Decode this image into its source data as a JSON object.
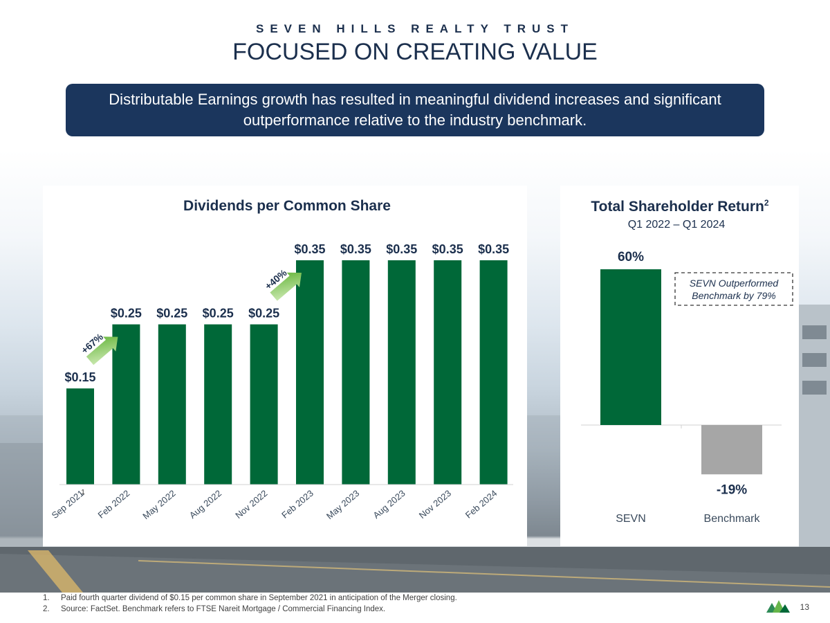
{
  "header": {
    "company": "SEVEN HILLS REALTY TRUST",
    "title": "FOCUSED ON CREATING VALUE"
  },
  "banner": {
    "text": "Distributable Earnings growth has resulted in meaningful dividend increases and significant outperformance relative to the industry benchmark."
  },
  "colors": {
    "navy": "#1b365d",
    "bar_green": "#006838",
    "benchmark_gray": "#a6a6a6",
    "arrow_green": "#7cc142"
  },
  "chart_data": [
    {
      "type": "bar",
      "title": "Dividends per Common Share",
      "categories": [
        "Sep 2021",
        "Feb 2022",
        "May 2022",
        "Aug 2022",
        "Nov 2022",
        "Feb 2023",
        "May 2023",
        "Aug 2023",
        "Nov 2023",
        "Feb 2024"
      ],
      "values": [
        0.15,
        0.25,
        0.25,
        0.25,
        0.25,
        0.35,
        0.35,
        0.35,
        0.35,
        0.35
      ],
      "data_labels": [
        "$0.15",
        "$0.25",
        "$0.25",
        "$0.25",
        "$0.25",
        "$0.35",
        "$0.35",
        "$0.35",
        "$0.35",
        "$0.35"
      ],
      "footnote_marker": "1",
      "annotations": [
        {
          "text": "+67%",
          "from_category": "Sep 2021",
          "to_category": "Feb 2022"
        },
        {
          "text": "+40%",
          "from_category": "Nov 2022",
          "to_category": "Feb 2023"
        }
      ],
      "ylim": [
        0,
        0.35
      ],
      "xlabel": "",
      "ylabel": ""
    },
    {
      "type": "bar",
      "title": "Total Shareholder Return",
      "title_superscript": "2",
      "subtitle": "Q1 2022 – Q1 2024",
      "categories": [
        "SEVN",
        "Benchmark"
      ],
      "values": [
        60,
        -19
      ],
      "data_labels": [
        "60%",
        "-19%"
      ],
      "callout": {
        "line1": "SEVN Outperformed",
        "line2": "Benchmark by 79%"
      },
      "ylim": [
        -19,
        60
      ],
      "xlabel": "",
      "ylabel": ""
    }
  ],
  "footnotes": [
    {
      "num": "1.",
      "text": "Paid fourth quarter dividend of $0.15 per common share in September 2021 in anticipation of the Merger closing."
    },
    {
      "num": "2.",
      "text": "Source:  FactSet.  Benchmark refers to FTSE Nareit Mortgage / Commercial Financing Index."
    }
  ],
  "page_number": "13"
}
